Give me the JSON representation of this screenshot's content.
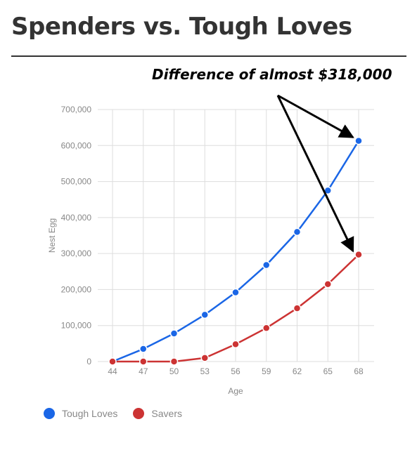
{
  "header": {
    "title": "Spenders vs. Tough Loves",
    "annotation": "Difference of almost $318,000"
  },
  "colors": {
    "tough_loves": "#1a66e6",
    "savers": "#cc3333",
    "grid": "#dddddd",
    "arrow": "#000000"
  },
  "chart_data": {
    "type": "line",
    "xlabel": "Age",
    "ylabel": "Nest Egg",
    "categories": [
      "44",
      "47",
      "50",
      "53",
      "56",
      "59",
      "62",
      "65",
      "68"
    ],
    "yticks": [
      "0",
      "100,000",
      "200,000",
      "300,000",
      "400,000",
      "500,000",
      "600,000",
      "700,000"
    ],
    "ylim": [
      0,
      700000
    ],
    "grid": true,
    "legend_position": "bottom-left",
    "series": [
      {
        "name": "Tough Loves",
        "color": "#1a66e6",
        "values": [
          0,
          35000,
          78000,
          130000,
          192000,
          268000,
          360000,
          475000,
          613000
        ]
      },
      {
        "name": "Savers",
        "color": "#cc3333",
        "values": [
          0,
          0,
          0,
          10000,
          48000,
          93000,
          148000,
          215000,
          297000
        ]
      }
    ]
  }
}
